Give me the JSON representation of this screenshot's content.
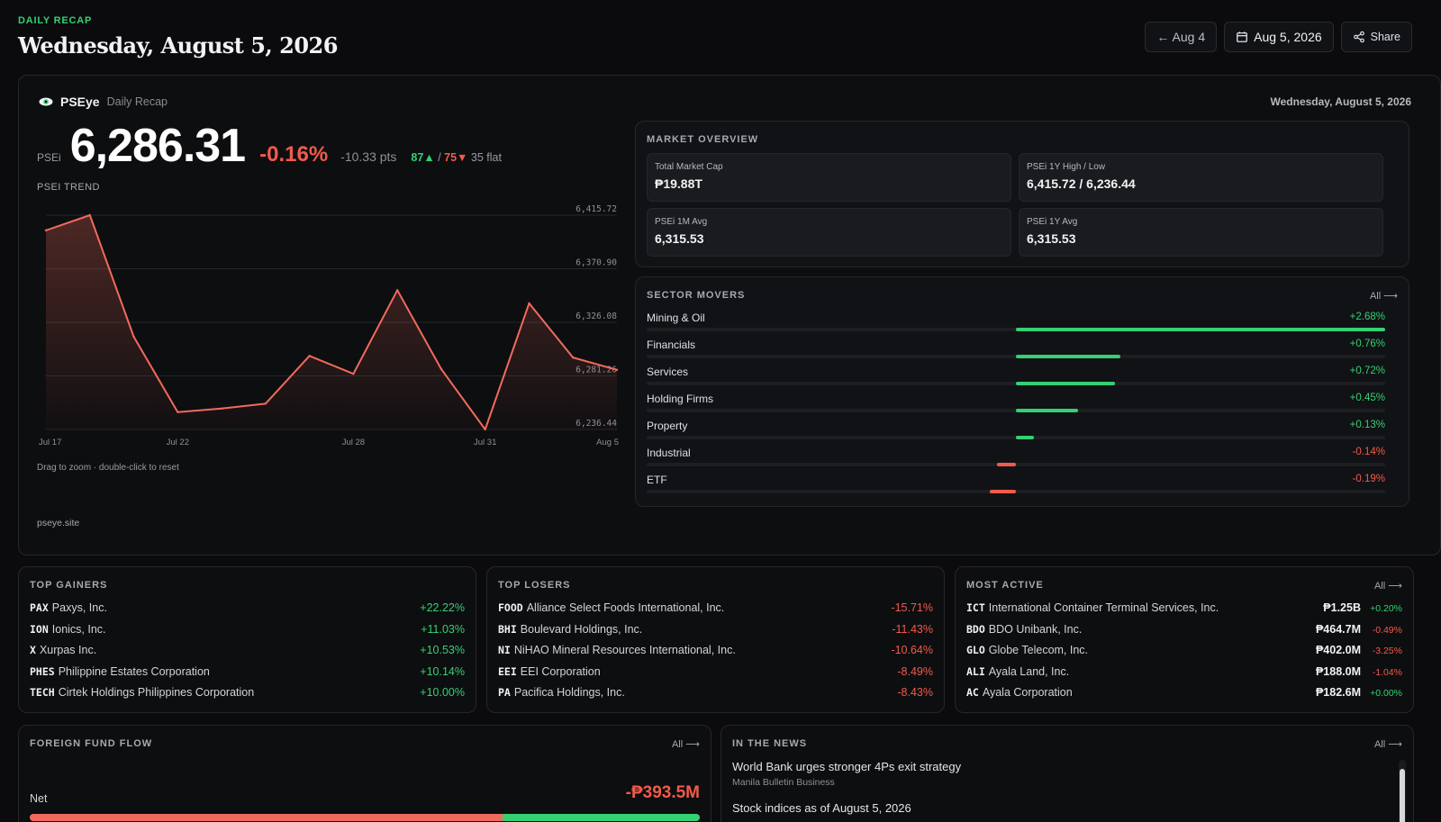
{
  "header": {
    "eyebrow": "DAILY RECAP",
    "title": "Wednesday, August 5, 2026",
    "prev_label": "← Aug 4",
    "date_label": "Aug 5, 2026",
    "share_label": "Share"
  },
  "brand": {
    "name": "PSEye",
    "sub": "Daily Recap",
    "date": "Wednesday, August 5, 2026",
    "site": "pseye.site"
  },
  "index": {
    "label": "PSEi",
    "value": "6,286.31",
    "pct": "-0.16%",
    "pts": "-10.33 pts",
    "advancers": "87▲",
    "sep": "/",
    "decliners": "75▼",
    "flat": "35 flat"
  },
  "trend": {
    "label": "PSEI TREND",
    "hint": "Drag to zoom · double-click to reset"
  },
  "chart_data": {
    "type": "area",
    "title": "PSEI TREND",
    "x": [
      "Jul 17",
      "Jul 20",
      "Jul 21",
      "Jul 22",
      "Jul 23",
      "Jul 24",
      "Jul 27",
      "Jul 28",
      "Jul 29",
      "Jul 30",
      "Jul 31",
      "Aug 3",
      "Aug 4",
      "Aug 5"
    ],
    "values": [
      6403.0,
      6415.72,
      6314.0,
      6251.0,
      6254.0,
      6258.0,
      6298.0,
      6283.0,
      6353.0,
      6287.0,
      6236.44,
      6342.0,
      6296.64,
      6286.31
    ],
    "x_ticks": [
      "Jul 17",
      "Jul 22",
      "Jul 28",
      "Jul 31",
      "Aug 5"
    ],
    "x_tick_labels": [
      "Jul 17",
      "Jul 22",
      "Jul 28",
      "Jul 31",
      "Aug 5"
    ],
    "y_ticks": [
      6415.72,
      6370.9,
      6326.08,
      6281.26,
      6236.44
    ],
    "y_tick_labels": [
      "6,415.72",
      "6,370.90",
      "6,326.08",
      "6,281.26",
      "6,236.44"
    ],
    "ylim": [
      6236.44,
      6415.72
    ],
    "line_color": "#f26a5c",
    "grid": true
  },
  "market_overview": {
    "title": "MARKET OVERVIEW",
    "stats": [
      {
        "label": "Total Market Cap",
        "value": "₱19.88T"
      },
      {
        "label": "PSEi 1Y High / Low",
        "value": "6,415.72 / 6,236.44"
      },
      {
        "label": "PSEi 1M Avg",
        "value": "6,315.53"
      },
      {
        "label": "PSEi 1Y Avg",
        "value": "6,315.53"
      }
    ]
  },
  "sector_movers": {
    "title": "SECTOR MOVERS",
    "all_label": "All ⟶",
    "scale_max": 2.68,
    "items": [
      {
        "name": "Mining & Oil",
        "change": 2.68,
        "label": "+2.68%"
      },
      {
        "name": "Financials",
        "change": 0.76,
        "label": "+0.76%"
      },
      {
        "name": "Services",
        "change": 0.72,
        "label": "+0.72%"
      },
      {
        "name": "Holding Firms",
        "change": 0.45,
        "label": "+0.45%"
      },
      {
        "name": "Property",
        "change": 0.13,
        "label": "+0.13%"
      },
      {
        "name": "Industrial",
        "change": -0.14,
        "label": "-0.14%"
      },
      {
        "name": "ETF",
        "change": -0.19,
        "label": "-0.19%"
      }
    ]
  },
  "top_gainers": {
    "title": "TOP GAINERS",
    "items": [
      {
        "sym": "PAX",
        "name": "Paxys, Inc.",
        "chg": "+22.22%"
      },
      {
        "sym": "ION",
        "name": "Ionics, Inc.",
        "chg": "+11.03%"
      },
      {
        "sym": "X",
        "name": "Xurpas Inc.",
        "chg": "+10.53%"
      },
      {
        "sym": "PHES",
        "name": "Philippine Estates Corporation",
        "chg": "+10.14%"
      },
      {
        "sym": "TECH",
        "name": "Cirtek Holdings Philippines Corporation",
        "chg": "+10.00%"
      }
    ]
  },
  "top_losers": {
    "title": "TOP LOSERS",
    "items": [
      {
        "sym": "FOOD",
        "name": "Alliance Select Foods International, Inc.",
        "chg": "-15.71%"
      },
      {
        "sym": "BHI",
        "name": "Boulevard Holdings, Inc.",
        "chg": "-11.43%"
      },
      {
        "sym": "NI",
        "name": "NiHAO Mineral Resources International, Inc.",
        "chg": "-10.64%"
      },
      {
        "sym": "EEI",
        "name": "EEI Corporation",
        "chg": "-8.49%"
      },
      {
        "sym": "PA",
        "name": "Pacifica Holdings, Inc.",
        "chg": "-8.43%"
      }
    ]
  },
  "most_active": {
    "title": "MOST ACTIVE",
    "all_label": "All ⟶",
    "items": [
      {
        "sym": "ICT",
        "name": "International Container Terminal Services, Inc.",
        "val": "₱1.25B",
        "chg": "+0.20%",
        "dir": "pos"
      },
      {
        "sym": "BDO",
        "name": "BDO Unibank, Inc.",
        "val": "₱464.7M",
        "chg": "-0.49%",
        "dir": "neg"
      },
      {
        "sym": "GLO",
        "name": "Globe Telecom, Inc.",
        "val": "₱402.0M",
        "chg": "-3.25%",
        "dir": "neg"
      },
      {
        "sym": "ALI",
        "name": "Ayala Land, Inc.",
        "val": "₱188.0M",
        "chg": "-1.04%",
        "dir": "neg"
      },
      {
        "sym": "AC",
        "name": "Ayala Corporation",
        "val": "₱182.6M",
        "chg": "+0.00%",
        "dir": "pos"
      }
    ]
  },
  "foreign_flow": {
    "title": "FOREIGN FUND FLOW",
    "all_label": "All ⟶",
    "net_label": "Net",
    "net_value": "-₱393.5M",
    "sell_share": 0.705
  },
  "news": {
    "title": "IN THE NEWS",
    "all_label": "All ⟶",
    "items": [
      {
        "title": "World Bank urges stronger 4Ps exit strategy",
        "source": "Manila Bulletin Business"
      },
      {
        "title": "Stock indices as of August 5, 2026",
        "source": ""
      }
    ]
  },
  "colors": {
    "positive": "#34d073",
    "negative": "#f25a4a",
    "accent": "#34d073"
  }
}
